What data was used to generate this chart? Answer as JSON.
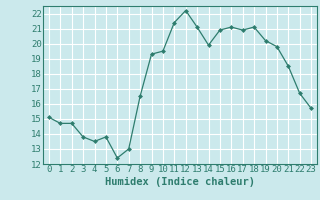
{
  "x": [
    0,
    1,
    2,
    3,
    4,
    5,
    6,
    7,
    8,
    9,
    10,
    11,
    12,
    13,
    14,
    15,
    16,
    17,
    18,
    19,
    20,
    21,
    22,
    23
  ],
  "y": [
    15.1,
    14.7,
    14.7,
    13.8,
    13.5,
    13.8,
    12.4,
    13.0,
    16.5,
    19.3,
    19.5,
    21.4,
    22.2,
    21.1,
    19.9,
    20.9,
    21.1,
    20.9,
    21.1,
    20.2,
    19.8,
    18.5,
    16.7,
    15.7
  ],
  "line_color": "#2E7D6E",
  "marker": "D",
  "marker_size": 2.0,
  "bg_color": "#CBE9EC",
  "grid_major_color": "#ffffff",
  "grid_minor_color": "#b8d8db",
  "xlabel": "Humidex (Indice chaleur)",
  "xlim": [
    -0.5,
    23.5
  ],
  "ylim": [
    12,
    22.5
  ],
  "yticks": [
    12,
    13,
    14,
    15,
    16,
    17,
    18,
    19,
    20,
    21,
    22
  ],
  "xticks": [
    0,
    1,
    2,
    3,
    4,
    5,
    6,
    7,
    8,
    9,
    10,
    11,
    12,
    13,
    14,
    15,
    16,
    17,
    18,
    19,
    20,
    21,
    22,
    23
  ],
  "tick_label_fontsize": 6.5,
  "xlabel_fontsize": 7.5
}
